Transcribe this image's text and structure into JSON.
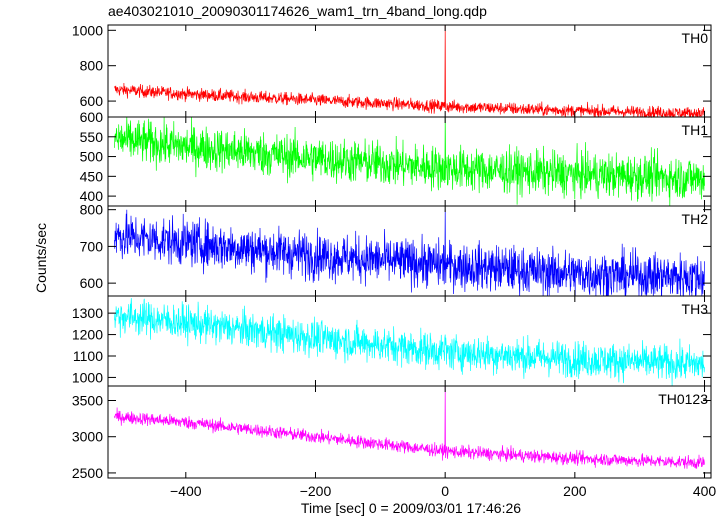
{
  "chart_data": {
    "type": "line",
    "title": "ae403021010_20090301174626_wam1_trn_4band_long.qdp",
    "xlabel": "Time [sec] 0 = 2009/03/01 17:46:26",
    "ylabel": "Counts/sec",
    "xlim": [
      -520,
      410
    ],
    "xticks": [
      -400,
      -200,
      0,
      200,
      400
    ],
    "grid": false,
    "panels": [
      {
        "name": "TH0",
        "color": "#ff0000",
        "ylim": [
          510,
          1030
        ],
        "yticks": [
          600,
          800,
          1000
        ],
        "trend": {
          "x": [
            -510,
            -400,
            -200,
            0,
            200,
            400
          ],
          "y": [
            665,
            640,
            605,
            570,
            545,
            530
          ]
        },
        "noise": 18,
        "spike": {
          "x": 0,
          "y": 1030
        },
        "x": [
          -500,
          -400,
          -300,
          -200,
          -100,
          0,
          100,
          200,
          300,
          400
        ],
        "values": [
          665,
          640,
          625,
          605,
          590,
          1030,
          560,
          545,
          535,
          530
        ]
      },
      {
        "name": "TH1",
        "color": "#00ff00",
        "ylim": [
          375,
          600
        ],
        "yticks": [
          400,
          450,
          500,
          550,
          600
        ],
        "trend": {
          "x": [
            -510,
            -400,
            -200,
            0,
            200,
            400
          ],
          "y": [
            545,
            525,
            495,
            470,
            455,
            445
          ]
        },
        "noise": 28,
        "spike": {
          "x": 0,
          "y": 600
        },
        "x": [
          -500,
          -400,
          -300,
          -200,
          -100,
          0,
          100,
          200,
          300,
          400
        ],
        "values": [
          545,
          525,
          510,
          495,
          482,
          600,
          462,
          455,
          450,
          445
        ]
      },
      {
        "name": "TH2",
        "color": "#0000ff",
        "ylim": [
          565,
          810
        ],
        "yticks": [
          600,
          700,
          800
        ],
        "trend": {
          "x": [
            -510,
            -400,
            -200,
            0,
            200,
            400
          ],
          "y": [
            730,
            710,
            675,
            650,
            625,
            615
          ]
        },
        "noise": 32,
        "spike": {
          "x": 0,
          "y": 800
        },
        "x": [
          -500,
          -400,
          -300,
          -200,
          -100,
          0,
          100,
          200,
          300,
          400
        ],
        "values": [
          730,
          710,
          690,
          675,
          660,
          800,
          640,
          625,
          620,
          615
        ]
      },
      {
        "name": "TH3",
        "color": "#00ffff",
        "ylim": [
          960,
          1380
        ],
        "yticks": [
          1000,
          1100,
          1200,
          1300
        ],
        "trend": {
          "x": [
            -510,
            -400,
            -200,
            0,
            200,
            400
          ],
          "y": [
            1290,
            1255,
            1185,
            1120,
            1085,
            1060
          ]
        },
        "noise": 42,
        "spike": {
          "x": 0,
          "y": 1200
        },
        "x": [
          -500,
          -400,
          -300,
          -200,
          -100,
          0,
          100,
          200,
          300,
          400
        ],
        "values": [
          1290,
          1255,
          1220,
          1185,
          1150,
          1200,
          1105,
          1085,
          1070,
          1060
        ]
      },
      {
        "name": "TH0123",
        "color": "#ff00ff",
        "ylim": [
          2430,
          3700
        ],
        "yticks": [
          2500,
          3000,
          3500
        ],
        "trend": {
          "x": [
            -510,
            -400,
            -200,
            0,
            200,
            400
          ],
          "y": [
            3280,
            3200,
            3000,
            2800,
            2700,
            2640
          ]
        },
        "noise": 45,
        "spike": {
          "x": 0,
          "y": 3700
        },
        "x": [
          -500,
          -400,
          -300,
          -200,
          -100,
          0,
          100,
          200,
          300,
          400
        ],
        "values": [
          3280,
          3200,
          3100,
          3000,
          2900,
          3700,
          2750,
          2700,
          2670,
          2640
        ]
      }
    ]
  }
}
